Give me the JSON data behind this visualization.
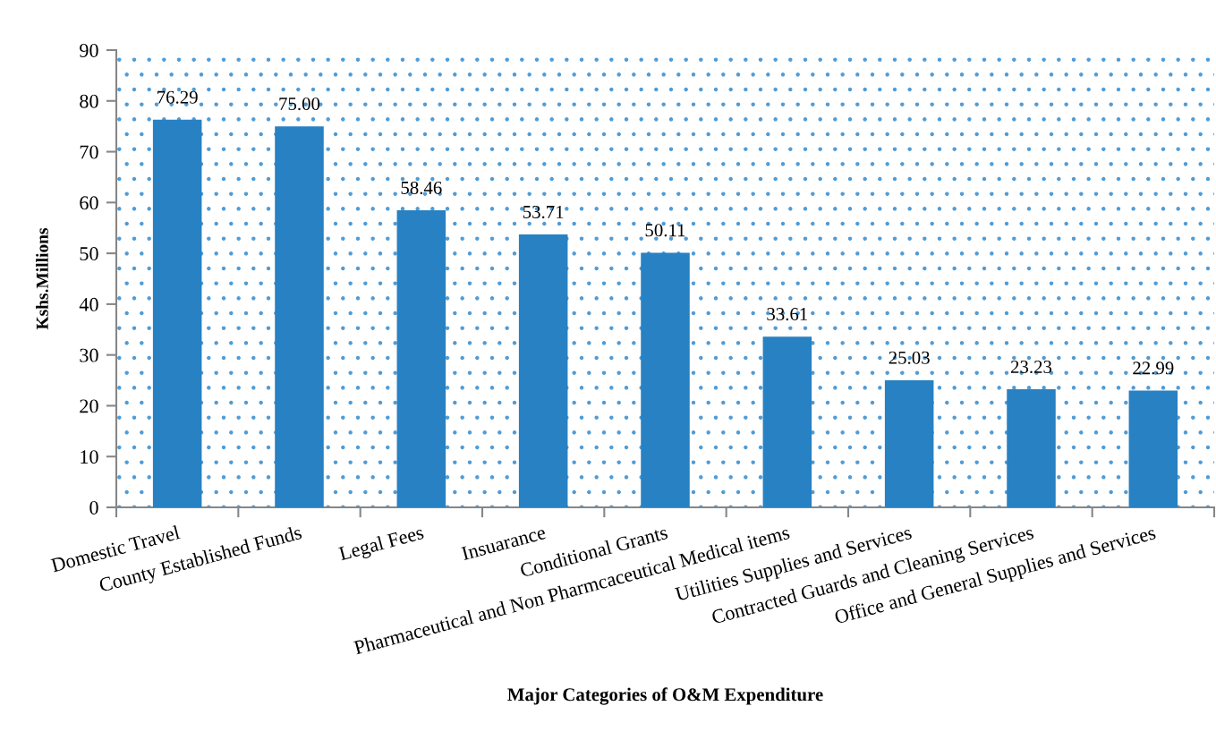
{
  "chart_data": {
    "type": "bar",
    "categories": [
      "Domestic Travel",
      "County Established Funds",
      "Legal Fees",
      "Insuarance",
      "Conditional Grants",
      "Pharmaceutical and Non Pharmcaceutical Medical items",
      "Utilities Supplies and Services",
      "Contracted Guards and Cleaning Services",
      "Office and General Supplies and Services"
    ],
    "values": [
      76.29,
      75.0,
      58.46,
      53.71,
      50.11,
      33.61,
      25.03,
      23.23,
      22.99
    ],
    "value_labels": [
      "76.29",
      "75.00",
      "58.46",
      "53.71",
      "50.11",
      "33.61",
      "25.03",
      "23.23",
      "22.99"
    ],
    "color": "#2781c3",
    "xlabel": "Major Categories of O&M Expenditure",
    "ylabel": "Kshs.Millions",
    "ylim": [
      0,
      90
    ],
    "yticks": [
      0,
      10,
      20,
      30,
      40,
      50,
      60,
      70,
      80,
      90
    ]
  }
}
